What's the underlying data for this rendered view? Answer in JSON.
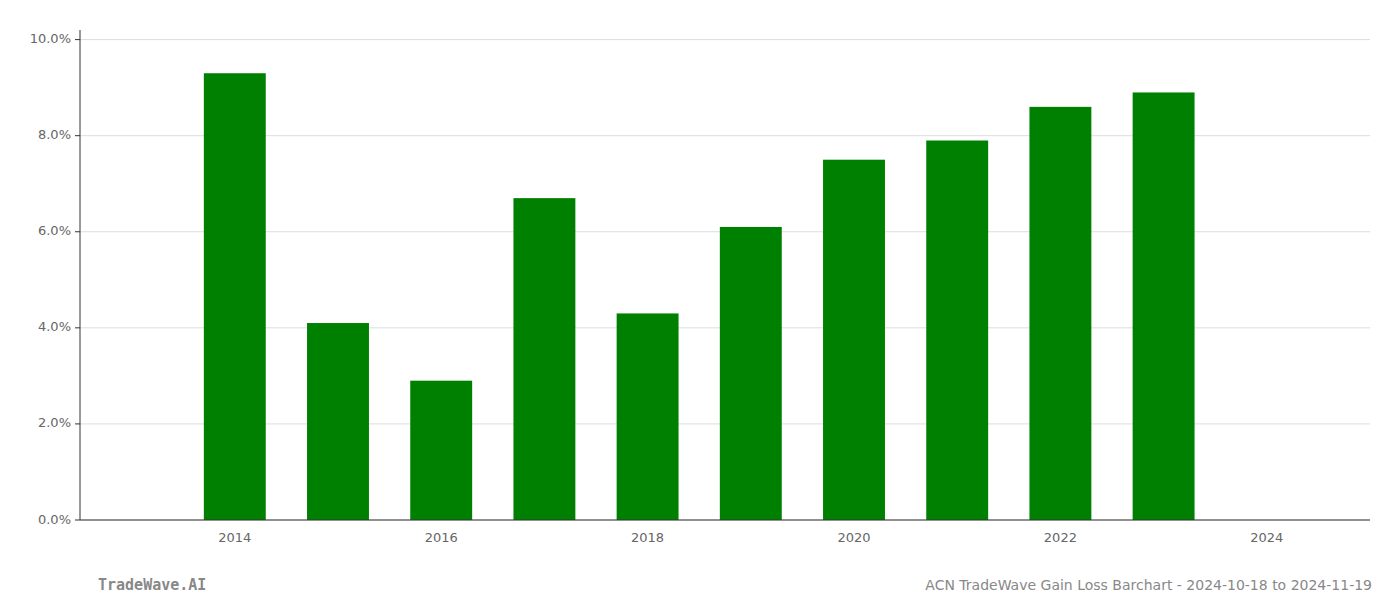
{
  "chart_data": {
    "type": "bar",
    "x": [
      2014,
      2015,
      2016,
      2017,
      2018,
      2019,
      2020,
      2021,
      2022,
      2023
    ],
    "values": [
      0.093,
      0.041,
      0.029,
      0.067,
      0.043,
      0.061,
      0.075,
      0.079,
      0.086,
      0.089
    ],
    "color": "#008000",
    "xlim": [
      2012.5,
      2025.0
    ],
    "xticks": [
      2014,
      2016,
      2018,
      2020,
      2022,
      2024
    ],
    "ylim": [
      0,
      0.102
    ],
    "yticks": [
      {
        "value": 0.0,
        "label": "0.0%"
      },
      {
        "value": 0.02,
        "label": "2.0%"
      },
      {
        "value": 0.04,
        "label": "4.0%"
      },
      {
        "value": 0.06,
        "label": "6.0%"
      },
      {
        "value": 0.08,
        "label": "8.0%"
      },
      {
        "value": 0.1,
        "label": "10.0%"
      }
    ],
    "grid": true,
    "annotations": [
      "TradeWave.AI",
      "ACN TradeWave Gain Loss Barchart - 2024-10-18 to 2024-11-19"
    ]
  }
}
